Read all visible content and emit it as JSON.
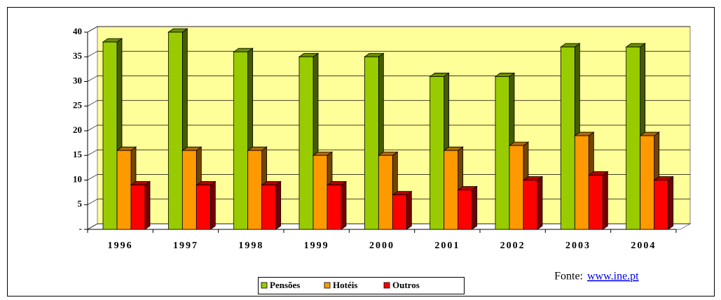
{
  "chart_data": {
    "type": "bar3d",
    "categories": [
      "1996",
      "1997",
      "1998",
      "1999",
      "2000",
      "2001",
      "2002",
      "2003",
      "2004"
    ],
    "series": [
      {
        "name": "Pensões",
        "color": "#99cc00",
        "values": [
          38,
          40,
          36,
          35,
          35,
          31,
          31,
          37,
          37
        ]
      },
      {
        "name": "Hotéis",
        "color": "#ff9900",
        "values": [
          16,
          16,
          16,
          15,
          15,
          16,
          17,
          19,
          19
        ]
      },
      {
        "name": "Outros",
        "color": "#ff0000",
        "values": [
          9,
          9,
          9,
          9,
          7,
          8,
          10,
          11,
          10
        ]
      }
    ],
    "ylim": [
      0,
      40
    ],
    "yticks": [
      {
        "value": 0,
        "label": "-"
      },
      5,
      10,
      15,
      20,
      25,
      30,
      35,
      40
    ],
    "grid": true,
    "source_text": "Fonte:",
    "source_link": "www.ine.pt"
  }
}
